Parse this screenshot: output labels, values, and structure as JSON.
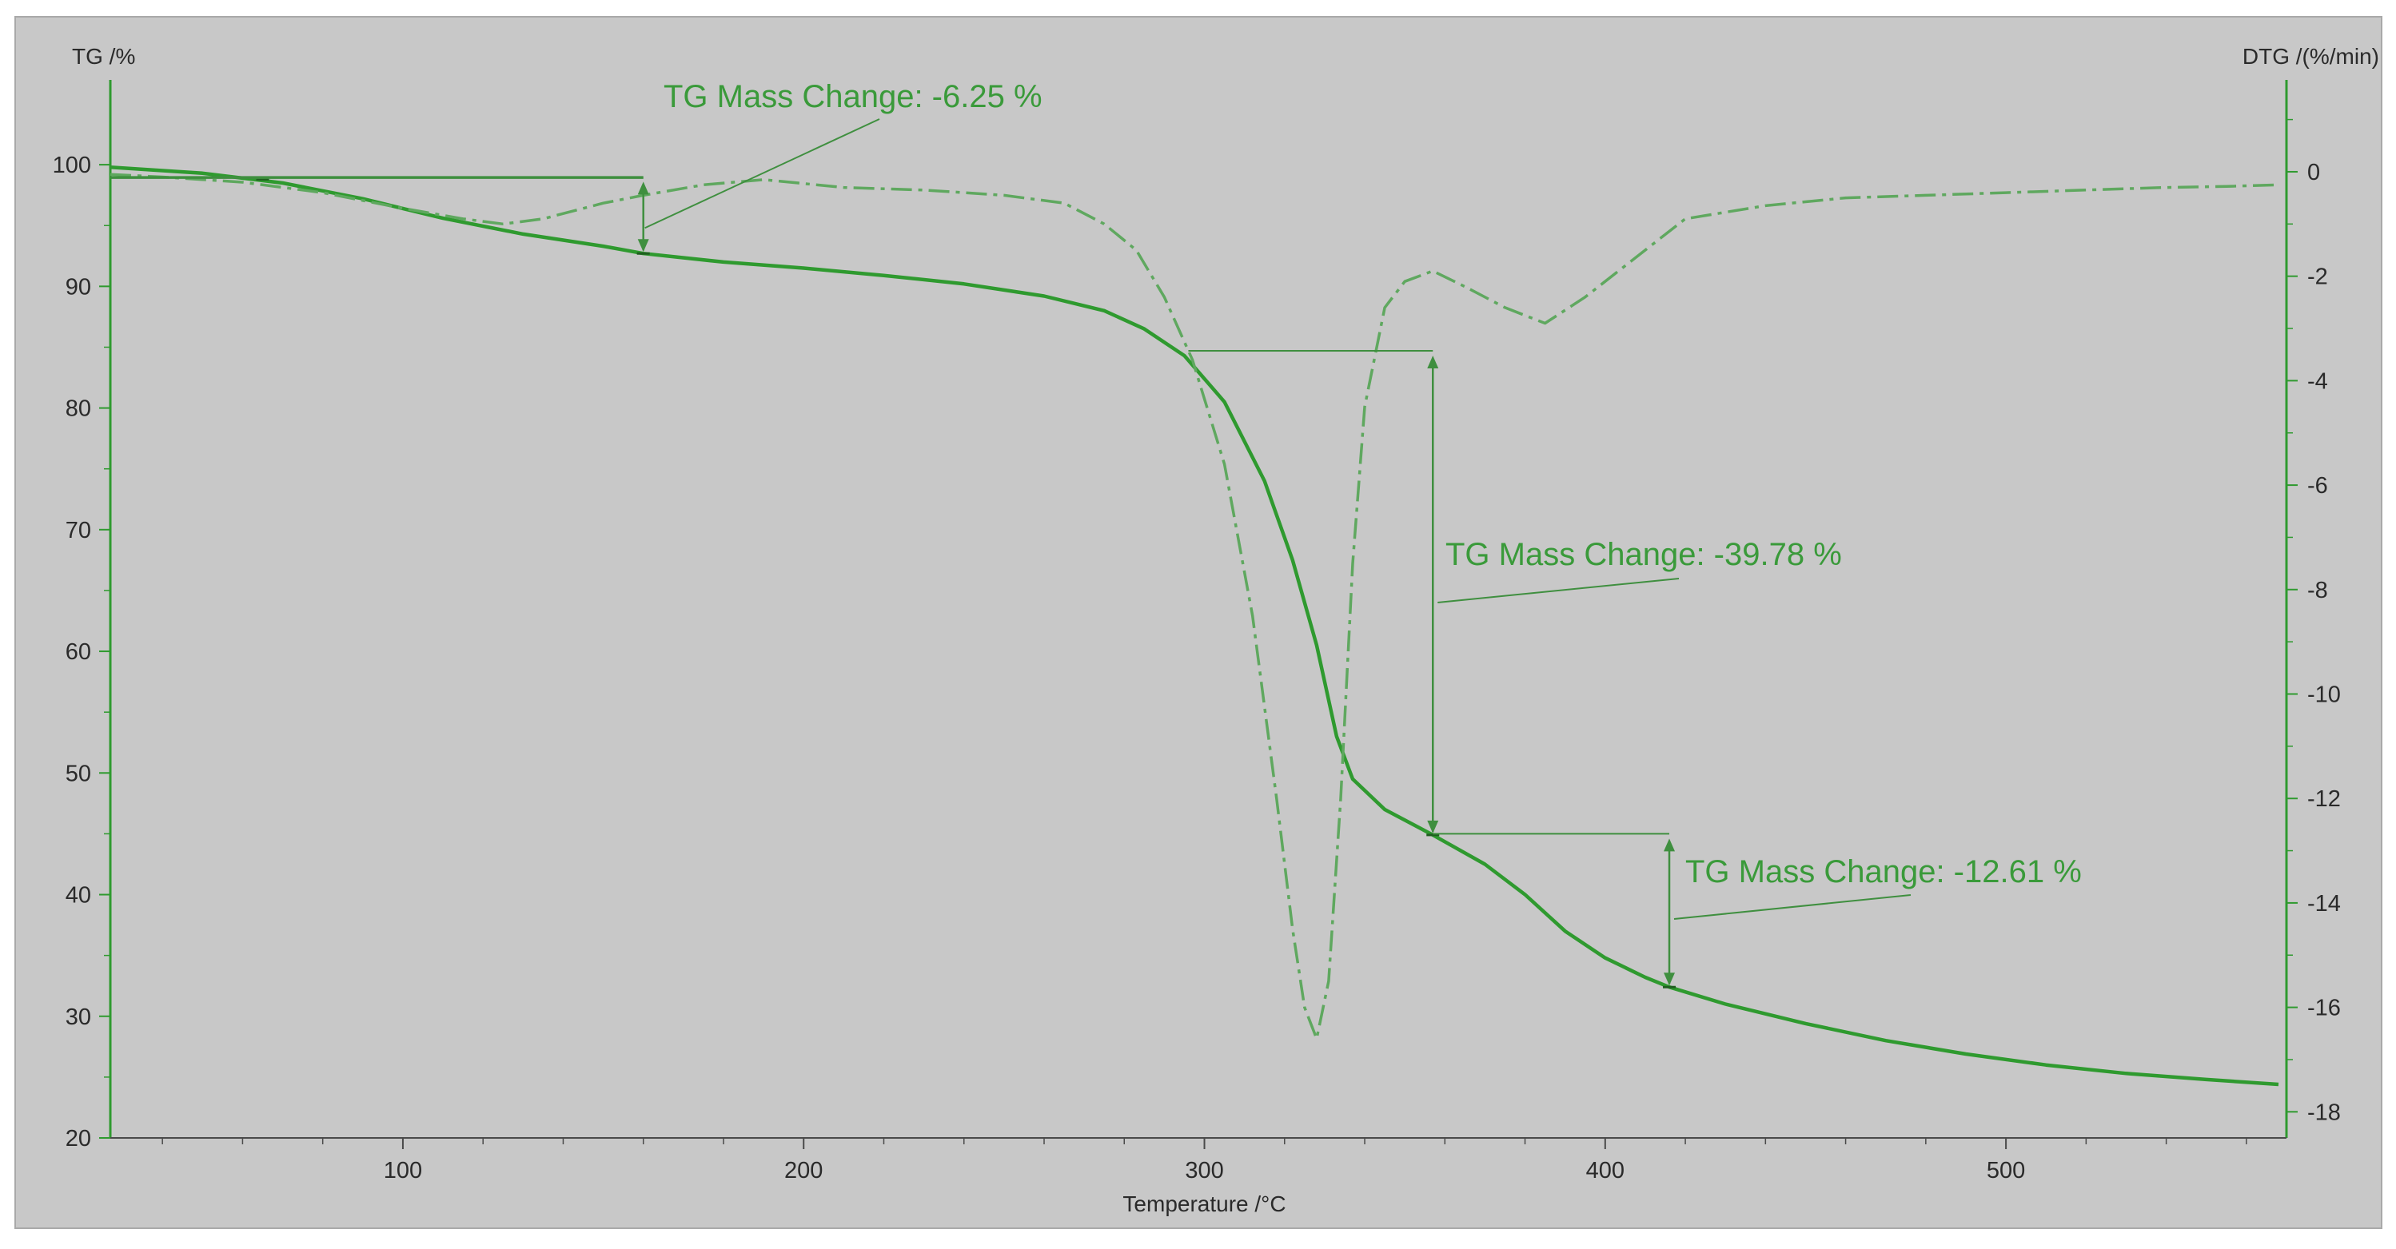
{
  "chart_data": {
    "type": "line",
    "left_axis_title": "TG /%",
    "right_axis_title": "DTG /(%/min)",
    "x_axis_title": "Temperature /°C",
    "xlim": [
      27,
      570
    ],
    "ylim_left": [
      20,
      105
    ],
    "ylim_right": [
      -18.5,
      1.3
    ],
    "x_ticks": [
      100,
      200,
      300,
      400,
      500
    ],
    "y_left_ticks": [
      20,
      30,
      40,
      50,
      60,
      70,
      80,
      90,
      100
    ],
    "y_right_ticks": [
      0,
      -2,
      -4,
      -6,
      -8,
      -10,
      -12,
      -14,
      -16,
      -18
    ],
    "colors": {
      "tg": "#2f9a2f",
      "dtg": "#5fa85f",
      "annot_line": "#3f8f3f",
      "annot_text": "#3a9a3a"
    },
    "series": [
      {
        "axis": "left",
        "style": "solid",
        "x": [
          27,
          50,
          70,
          90,
          110,
          130,
          150,
          160,
          180,
          200,
          220,
          240,
          260,
          275,
          285,
          295,
          305,
          315,
          322,
          328,
          333,
          337,
          345,
          357,
          370,
          380,
          390,
          400,
          410,
          416,
          430,
          450,
          470,
          490,
          510,
          530,
          550,
          568
        ],
        "y": [
          99.8,
          99.3,
          98.5,
          97.2,
          95.6,
          94.3,
          93.3,
          92.7,
          92.0,
          91.5,
          90.9,
          90.2,
          89.2,
          88.0,
          86.5,
          84.3,
          80.5,
          74.0,
          67.5,
          60.5,
          53.0,
          49.5,
          47.0,
          44.9,
          42.5,
          40.0,
          37.0,
          34.8,
          33.2,
          32.4,
          31.0,
          29.4,
          28.0,
          26.9,
          26.0,
          25.3,
          24.8,
          24.4
        ]
      },
      {
        "axis": "right",
        "style": "dashdot",
        "x": [
          27,
          40,
          60,
          80,
          100,
          115,
          125,
          135,
          150,
          160,
          175,
          190,
          210,
          230,
          250,
          265,
          275,
          283,
          290,
          297,
          305,
          312,
          318,
          322,
          325,
          328,
          331,
          334,
          337,
          340,
          345,
          350,
          357,
          365,
          375,
          385,
          395,
          410,
          420,
          440,
          460,
          480,
          500,
          520,
          540,
          555,
          568
        ],
        "y": [
          -0.05,
          -0.1,
          -0.2,
          -0.4,
          -0.7,
          -0.9,
          -1.0,
          -0.9,
          -0.6,
          -0.45,
          -0.25,
          -0.15,
          -0.3,
          -0.35,
          -0.45,
          -0.6,
          -1.0,
          -1.5,
          -2.4,
          -3.6,
          -5.6,
          -8.5,
          -12.0,
          -14.5,
          -16.0,
          -16.6,
          -15.5,
          -12.0,
          -7.5,
          -4.5,
          -2.6,
          -2.1,
          -1.9,
          -2.2,
          -2.6,
          -2.9,
          -2.4,
          -1.5,
          -0.9,
          -0.65,
          -0.5,
          -0.45,
          -0.4,
          -0.35,
          -0.3,
          -0.28,
          -0.25
        ]
      }
    ],
    "annotations": [
      {
        "text": "TG Mass Change: -6.25 %",
        "x_from": 160,
        "y_top": 99,
        "y_bottom": 92.7
      },
      {
        "text": "TG Mass Change: -39.78 %",
        "x_from": 357,
        "y_top": 84.7,
        "y_bottom": 44.9
      },
      {
        "text": "TG Mass Change: -12.61 %",
        "x_from": 416,
        "y_top": 45.0,
        "y_bottom": 32.4
      }
    ]
  }
}
